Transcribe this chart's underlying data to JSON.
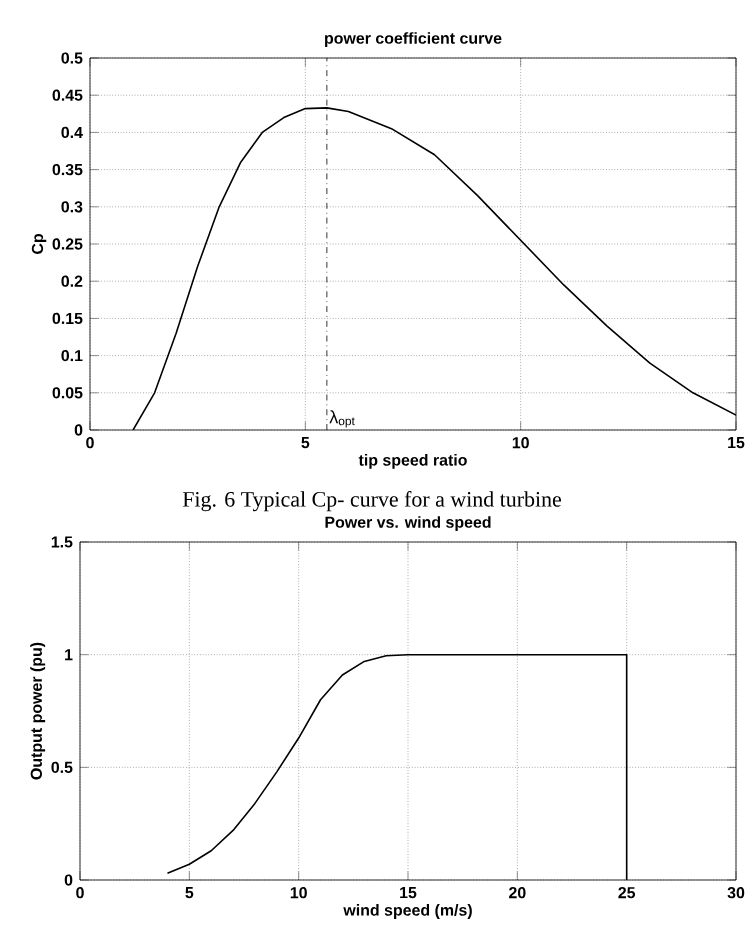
{
  "chart_data": [
    {
      "type": "line",
      "title": "power coefficient curve",
      "xlabel": "tip speed ratio",
      "ylabel": "Cp",
      "color": "#000000",
      "grid": true,
      "x": [
        1,
        1.5,
        2,
        2.5,
        3,
        3.5,
        4,
        4.5,
        5,
        5.5,
        6,
        7,
        8,
        9,
        10,
        11,
        12,
        13,
        14,
        15
      ],
      "values": [
        0,
        0.05,
        0.13,
        0.22,
        0.3,
        0.36,
        0.4,
        0.42,
        0.432,
        0.433,
        0.428,
        0.405,
        0.37,
        0.315,
        0.255,
        0.195,
        0.14,
        0.09,
        0.05,
        0.02
      ],
      "xlim": [
        0,
        15
      ],
      "ylim": [
        0,
        0.5
      ],
      "xticks": [
        0,
        5,
        10,
        15
      ],
      "yticks": [
        0,
        0.05,
        0.1,
        0.15,
        0.2,
        0.25,
        0.3,
        0.35,
        0.4,
        0.45,
        0.5
      ],
      "ref_lines": [
        {
          "axis": "x",
          "value": 5.5,
          "label": "λ$_{opt}$",
          "line_style": "dashdot"
        }
      ],
      "annotations": [
        "Fig. 6 Typical Cp-   curve for a wind turbine"
      ]
    },
    {
      "type": "line",
      "title": "Power vs. wind speed",
      "xlabel": "wind speed (m/s)",
      "ylabel": "Output power (pu)",
      "color": "#000000",
      "grid": true,
      "x": [
        4,
        5,
        6,
        7,
        8,
        9,
        10,
        11,
        12,
        13,
        14,
        15,
        25,
        25
      ],
      "values": [
        0.03,
        0.07,
        0.13,
        0.22,
        0.34,
        0.48,
        0.63,
        0.8,
        0.91,
        0.97,
        0.995,
        1,
        1,
        0
      ],
      "xlim": [
        0,
        30
      ],
      "ylim": [
        0,
        1.5
      ],
      "xticks": [
        0,
        5,
        10,
        15,
        20,
        25,
        30
      ],
      "yticks": [
        0,
        0.5,
        1,
        1.5
      ]
    }
  ]
}
